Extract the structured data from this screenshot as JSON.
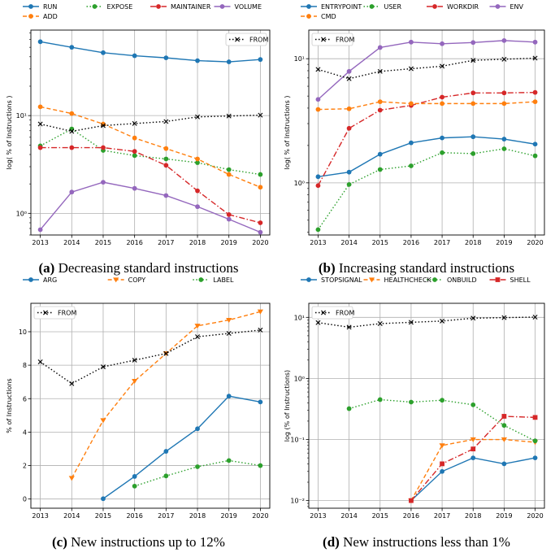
{
  "chart_data": [
    {
      "type": "line",
      "panel": "a",
      "caption_tag": "(a)",
      "caption_text": "Decreasing standard instructions",
      "ylabel": "log( % of Instructions )",
      "yscale": "log",
      "ylim": [
        0.6,
        75
      ],
      "yticks": [
        1,
        10
      ],
      "yticklabels": [
        "10⁰",
        "10¹"
      ],
      "grid": true,
      "legend": "top (outside)",
      "x": [
        2013,
        2014,
        2015,
        2016,
        2017,
        2018,
        2019,
        2020
      ],
      "series": [
        {
          "name": "RUN",
          "color": "#1f77b4",
          "style": "solid",
          "marker": "circle",
          "values": [
            57.0,
            50.0,
            44.0,
            41.0,
            39.0,
            36.5,
            35.5,
            37.5
          ]
        },
        {
          "name": "EXPOSE",
          "color": "#2ca02c",
          "style": "dotted",
          "marker": "circle",
          "values": [
            4.9,
            7.3,
            4.4,
            3.9,
            3.6,
            3.3,
            2.8,
            2.5
          ]
        },
        {
          "name": "MAINTAINER",
          "color": "#d62728",
          "style": "dashdot",
          "marker": "circle",
          "values": [
            4.7,
            4.7,
            4.7,
            4.3,
            3.1,
            1.7,
            0.97,
            0.8
          ]
        },
        {
          "name": "VOLUME",
          "color": "#9467bd",
          "style": "solid",
          "marker": "circle",
          "values": [
            0.68,
            1.65,
            2.08,
            1.8,
            1.52,
            1.17,
            0.87,
            0.64
          ]
        },
        {
          "name": "ADD",
          "color": "#ff7f0e",
          "style": "dashed",
          "marker": "circle",
          "values": [
            12.3,
            10.5,
            8.2,
            5.9,
            4.6,
            3.6,
            2.5,
            1.85
          ]
        }
      ],
      "reference": {
        "name": "FROM",
        "color": "#000000",
        "style": "dotted",
        "marker": "x",
        "values": [
          8.2,
          6.9,
          7.9,
          8.3,
          8.7,
          9.7,
          9.9,
          10.1
        ],
        "legend": "top-right"
      }
    },
    {
      "type": "line",
      "panel": "b",
      "caption_tag": "(b)",
      "caption_text": "Increasing standard instructions",
      "ylabel": "log( % of Instructions )",
      "yscale": "log",
      "ylim": [
        0.38,
        17
      ],
      "yticks": [
        1,
        10
      ],
      "yticklabels": [
        "10⁰",
        "10¹"
      ],
      "grid": true,
      "legend": "top (outside)",
      "x": [
        2013,
        2014,
        2015,
        2016,
        2017,
        2018,
        2019,
        2020
      ],
      "series": [
        {
          "name": "ENTRYPOINT",
          "color": "#1f77b4",
          "style": "solid",
          "marker": "circle",
          "values": [
            1.12,
            1.22,
            1.7,
            2.1,
            2.3,
            2.35,
            2.25,
            2.05
          ]
        },
        {
          "name": "USER",
          "color": "#2ca02c",
          "style": "dotted",
          "marker": "circle",
          "values": [
            0.42,
            0.97,
            1.28,
            1.37,
            1.75,
            1.72,
            1.88,
            1.65
          ]
        },
        {
          "name": "WORKDIR",
          "color": "#d62728",
          "style": "dashdot",
          "marker": "circle",
          "values": [
            0.95,
            2.75,
            3.85,
            4.2,
            4.9,
            5.3,
            5.3,
            5.35
          ]
        },
        {
          "name": "ENV",
          "color": "#9467bd",
          "style": "solid",
          "marker": "circle",
          "values": [
            4.7,
            7.9,
            12.3,
            13.6,
            13.2,
            13.5,
            14.0,
            13.6
          ]
        },
        {
          "name": "CMD",
          "color": "#ff7f0e",
          "style": "dashed",
          "marker": "circle",
          "values": [
            3.9,
            3.95,
            4.5,
            4.35,
            4.35,
            4.35,
            4.35,
            4.5
          ]
        }
      ],
      "reference": {
        "name": "FROM",
        "color": "#000000",
        "style": "dotted",
        "marker": "x",
        "values": [
          8.2,
          6.9,
          7.9,
          8.3,
          8.7,
          9.7,
          9.9,
          10.1
        ],
        "legend": "top-left"
      }
    },
    {
      "type": "line",
      "panel": "c",
      "caption_tag": "(c)",
      "caption_text": "New instructions up to 12%",
      "ylabel": "% of Instructions",
      "yscale": "linear",
      "ylim": [
        -0.55,
        11.7
      ],
      "yticks": [
        0,
        2,
        4,
        6,
        8,
        10
      ],
      "yticklabels": [
        "0",
        "2",
        "4",
        "6",
        "8",
        "10"
      ],
      "grid": true,
      "legend": "top (outside)",
      "x": [
        2013,
        2014,
        2015,
        2016,
        2017,
        2018,
        2019,
        2020
      ],
      "series": [
        {
          "name": "ARG",
          "color": "#1f77b4",
          "style": "solid",
          "marker": "circle",
          "values": [
            null,
            null,
            0.02,
            1.35,
            2.85,
            4.2,
            6.15,
            5.8
          ]
        },
        {
          "name": "COPY",
          "color": "#ff7f0e",
          "style": "dashed",
          "marker": "triangle-down",
          "values": [
            null,
            1.25,
            4.7,
            7.05,
            8.7,
            10.35,
            10.7,
            11.2
          ]
        },
        {
          "name": "LABEL",
          "color": "#2ca02c",
          "style": "dotted",
          "marker": "circle",
          "values": [
            null,
            null,
            null,
            0.77,
            1.38,
            1.93,
            2.3,
            2.0
          ]
        }
      ],
      "reference": {
        "name": "FROM",
        "color": "#000000",
        "style": "dotted",
        "marker": "x",
        "values": [
          8.2,
          6.9,
          7.9,
          8.3,
          8.7,
          9.7,
          9.9,
          10.1
        ],
        "legend": "top-left"
      }
    },
    {
      "type": "line",
      "panel": "d",
      "caption_tag": "(d)",
      "caption_text": "New instructions less than 1%",
      "ylabel": "log (% of Instructions)",
      "yscale": "log",
      "ylim": [
        0.0075,
        17
      ],
      "yticks": [
        0.01,
        0.1,
        1,
        10
      ],
      "yticklabels": [
        "10⁻²",
        "10⁻¹",
        "10⁰",
        "10¹"
      ],
      "grid": true,
      "legend": "top (outside)",
      "x": [
        2013,
        2014,
        2015,
        2016,
        2017,
        2018,
        2019,
        2020
      ],
      "series": [
        {
          "name": "STOPSIGNAL",
          "color": "#1f77b4",
          "style": "solid",
          "marker": "circle",
          "values": [
            null,
            null,
            null,
            0.01,
            0.03,
            0.05,
            0.04,
            0.05
          ]
        },
        {
          "name": "HEALTHCHECK",
          "color": "#ff7f0e",
          "style": "dashed",
          "marker": "triangle-down",
          "values": [
            null,
            null,
            null,
            0.01,
            0.08,
            0.1,
            0.1,
            0.09
          ]
        },
        {
          "name": "ONBUILD",
          "color": "#2ca02c",
          "style": "dotted",
          "marker": "circle",
          "values": [
            null,
            0.32,
            0.45,
            0.41,
            0.44,
            0.37,
            0.17,
            0.095
          ]
        },
        {
          "name": "SHELL",
          "color": "#d62728",
          "style": "dashdot",
          "marker": "square",
          "values": [
            null,
            null,
            null,
            0.01,
            0.04,
            0.07,
            0.24,
            0.23
          ]
        }
      ],
      "reference": {
        "name": "FROM",
        "color": "#000000",
        "style": "dotted",
        "marker": "x",
        "values": [
          8.2,
          6.9,
          7.9,
          8.3,
          8.7,
          9.7,
          9.9,
          10.1
        ],
        "legend": "top-left"
      }
    }
  ]
}
